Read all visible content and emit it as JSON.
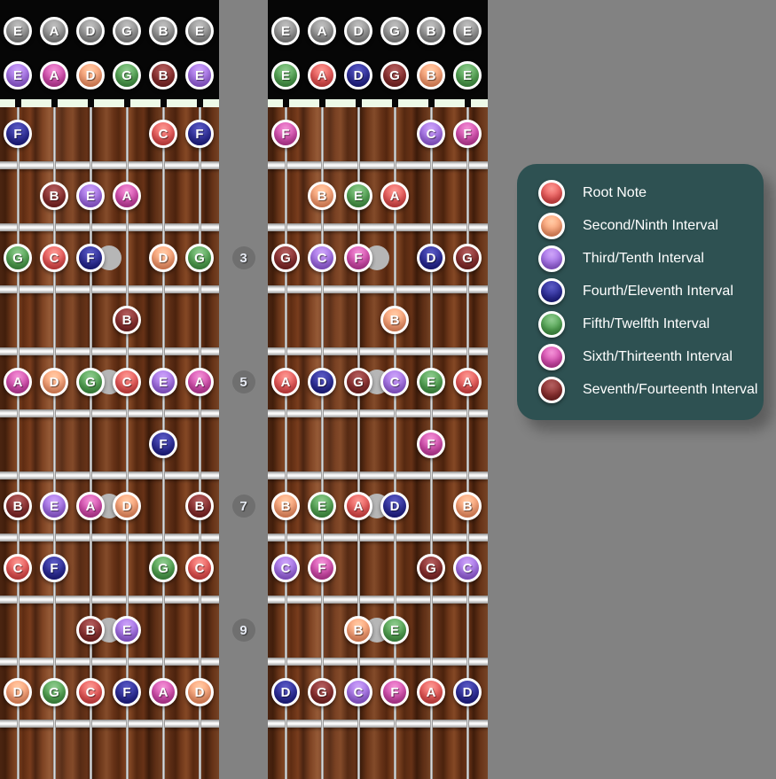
{
  "background_color": "#828282",
  "interval_colors": {
    "root": [
      "#fa9a94",
      "#ee5a5a",
      "#d23434"
    ],
    "second": [
      "#ffcba6",
      "#ffa478",
      "#f4804e"
    ],
    "third": [
      "#cda5f7",
      "#a873ec",
      "#8a4cda"
    ],
    "fourth": [
      "#5c5cc4",
      "#30309e",
      "#121278"
    ],
    "fifth": [
      "#90cb90",
      "#55a855",
      "#36883a"
    ],
    "sixth": [
      "#f293d6",
      "#d94fb2",
      "#bb2f92"
    ],
    "seventh": [
      "#b36060",
      "#8f3232",
      "#6d1a1a"
    ],
    "open": [
      "#c0c0c0",
      "#989898",
      "#787878"
    ]
  },
  "legend": {
    "panel_color": "#2e5152",
    "items": [
      {
        "label": "Root Note",
        "interval": "root"
      },
      {
        "label": "Second/Ninth Interval",
        "interval": "second"
      },
      {
        "label": "Third/Tenth Interval",
        "interval": "third"
      },
      {
        "label": "Fourth/Eleventh Interval",
        "interval": "fourth"
      },
      {
        "label": "Fifth/Twelfth Interval",
        "interval": "fifth"
      },
      {
        "label": "Sixth/Thirteenth Interval",
        "interval": "sixth"
      },
      {
        "label": "Seventh/Fourteenth Interval",
        "interval": "seventh"
      }
    ]
  },
  "fret_number_labels": [
    {
      "fret": 3,
      "label": "3"
    },
    {
      "fret": 5,
      "label": "5"
    },
    {
      "fret": 7,
      "label": "7"
    },
    {
      "fret": 9,
      "label": "9"
    }
  ],
  "inlay_dot_frets": [
    3,
    5,
    7,
    9
  ],
  "fretboards": [
    {
      "name": "left",
      "open_strings": [
        "E",
        "A",
        "D",
        "G",
        "B",
        "E"
      ],
      "open_intervals": [
        [
          "E",
          "third"
        ],
        [
          "A",
          "sixth"
        ],
        [
          "D",
          "second"
        ],
        [
          "G",
          "fifth"
        ],
        [
          "B",
          "seventh"
        ],
        [
          "E",
          "third"
        ]
      ],
      "frets": {
        "1": [
          [
            0,
            "F",
            "fourth"
          ],
          [
            4,
            "C",
            "root"
          ],
          [
            5,
            "F",
            "fourth"
          ]
        ],
        "2": [
          [
            1,
            "B",
            "seventh"
          ],
          [
            2,
            "E",
            "third"
          ],
          [
            3,
            "A",
            "sixth"
          ]
        ],
        "3": [
          [
            0,
            "G",
            "fifth"
          ],
          [
            1,
            "C",
            "root"
          ],
          [
            2,
            "F",
            "fourth"
          ],
          [
            4,
            "D",
            "second"
          ],
          [
            5,
            "G",
            "fifth"
          ]
        ],
        "4": [
          [
            3,
            "B",
            "seventh"
          ]
        ],
        "5": [
          [
            0,
            "A",
            "sixth"
          ],
          [
            1,
            "D",
            "second"
          ],
          [
            2,
            "G",
            "fifth"
          ],
          [
            3,
            "C",
            "root"
          ],
          [
            4,
            "E",
            "third"
          ],
          [
            5,
            "A",
            "sixth"
          ]
        ],
        "6": [
          [
            4,
            "F",
            "fourth"
          ]
        ],
        "7": [
          [
            0,
            "B",
            "seventh"
          ],
          [
            1,
            "E",
            "third"
          ],
          [
            2,
            "A",
            "sixth"
          ],
          [
            3,
            "D",
            "second"
          ],
          [
            5,
            "B",
            "seventh"
          ]
        ],
        "8": [
          [
            0,
            "C",
            "root"
          ],
          [
            1,
            "F",
            "fourth"
          ],
          [
            4,
            "G",
            "fifth"
          ],
          [
            5,
            "C",
            "root"
          ]
        ],
        "9": [
          [
            2,
            "B",
            "seventh"
          ],
          [
            3,
            "E",
            "third"
          ]
        ],
        "10": [
          [
            0,
            "D",
            "second"
          ],
          [
            1,
            "G",
            "fifth"
          ],
          [
            2,
            "C",
            "root"
          ],
          [
            3,
            "F",
            "fourth"
          ],
          [
            4,
            "A",
            "sixth"
          ],
          [
            5,
            "D",
            "second"
          ]
        ]
      }
    },
    {
      "name": "right",
      "open_strings": [
        "E",
        "A",
        "D",
        "G",
        "B",
        "E"
      ],
      "open_intervals": [
        [
          "E",
          "fifth"
        ],
        [
          "A",
          "root"
        ],
        [
          "D",
          "fourth"
        ],
        [
          "G",
          "seventh"
        ],
        [
          "B",
          "second"
        ],
        [
          "E",
          "fifth"
        ]
      ],
      "frets": {
        "1": [
          [
            0,
            "F",
            "sixth"
          ],
          [
            4,
            "C",
            "third"
          ],
          [
            5,
            "F",
            "sixth"
          ]
        ],
        "2": [
          [
            1,
            "B",
            "second"
          ],
          [
            2,
            "E",
            "fifth"
          ],
          [
            3,
            "A",
            "root"
          ]
        ],
        "3": [
          [
            0,
            "G",
            "seventh"
          ],
          [
            1,
            "C",
            "third"
          ],
          [
            2,
            "F",
            "sixth"
          ],
          [
            4,
            "D",
            "fourth"
          ],
          [
            5,
            "G",
            "seventh"
          ]
        ],
        "4": [
          [
            3,
            "B",
            "second"
          ]
        ],
        "5": [
          [
            0,
            "A",
            "root"
          ],
          [
            1,
            "D",
            "fourth"
          ],
          [
            2,
            "G",
            "seventh"
          ],
          [
            3,
            "C",
            "third"
          ],
          [
            4,
            "E",
            "fifth"
          ],
          [
            5,
            "A",
            "root"
          ]
        ],
        "6": [
          [
            4,
            "F",
            "sixth"
          ]
        ],
        "7": [
          [
            0,
            "B",
            "second"
          ],
          [
            1,
            "E",
            "fifth"
          ],
          [
            2,
            "A",
            "root"
          ],
          [
            3,
            "D",
            "fourth"
          ],
          [
            5,
            "B",
            "second"
          ]
        ],
        "8": [
          [
            0,
            "C",
            "third"
          ],
          [
            1,
            "F",
            "sixth"
          ],
          [
            4,
            "G",
            "seventh"
          ],
          [
            5,
            "C",
            "third"
          ]
        ],
        "9": [
          [
            2,
            "B",
            "second"
          ],
          [
            3,
            "E",
            "fifth"
          ]
        ],
        "10": [
          [
            0,
            "D",
            "fourth"
          ],
          [
            1,
            "G",
            "seventh"
          ],
          [
            2,
            "C",
            "third"
          ],
          [
            3,
            "F",
            "sixth"
          ],
          [
            4,
            "A",
            "root"
          ],
          [
            5,
            "D",
            "fourth"
          ]
        ]
      }
    }
  ]
}
